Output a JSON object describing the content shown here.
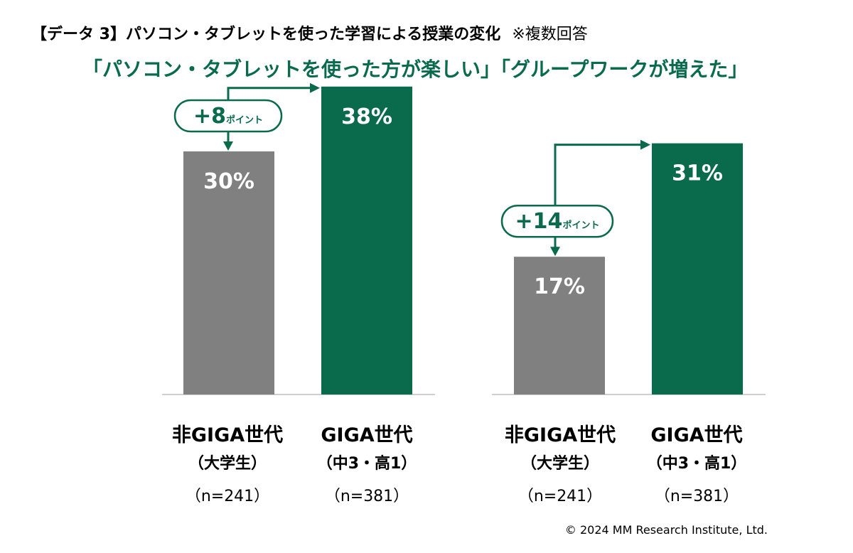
{
  "header": {
    "title": "【データ 3】パソコン・タブレットを使った学習による授業の変化",
    "note": "※複数回答"
  },
  "copyright": "© 2024 MM Research Institute, Ltd.",
  "colors": {
    "green": "#0a6b4c",
    "gray": "#808080"
  },
  "chart_data": [
    {
      "type": "bar",
      "title": "「パソコン・タブレットを使った方が楽しい」",
      "categories": [
        "非GIGA世代",
        "GIGA世代"
      ],
      "category_sublabels": [
        "（大学生）",
        "（中3・高1）"
      ],
      "category_n": [
        "（n=241）",
        "（n=381）"
      ],
      "values": [
        30,
        38
      ],
      "value_labels": [
        "30%",
        "38%"
      ],
      "bar_colors": [
        "#808080",
        "#0a6b4c"
      ],
      "diff_number": "+8",
      "diff_unit": "ポイント",
      "ylim": [
        0,
        45
      ]
    },
    {
      "type": "bar",
      "title": "「グループワークが増えた」",
      "categories": [
        "非GIGA世代",
        "GIGA世代"
      ],
      "category_sublabels": [
        "（大学生）",
        "（中3・高1）"
      ],
      "category_n": [
        "（n=241）",
        "（n=381）"
      ],
      "values": [
        17,
        31
      ],
      "value_labels": [
        "17%",
        "31%"
      ],
      "bar_colors": [
        "#808080",
        "#0a6b4c"
      ],
      "diff_number": "+14",
      "diff_unit": "ポイント",
      "ylim": [
        0,
        45
      ]
    }
  ]
}
